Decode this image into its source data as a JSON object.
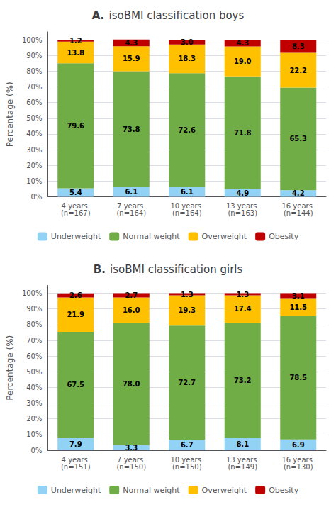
{
  "chart_data": [
    {
      "type": "bar",
      "title": "A. isoBMI classification boys",
      "categories": [
        "4 years (n=167)",
        "7 years (n=164)",
        "10 years (n=164)",
        "13 years (n=163)",
        "16 years (n=144)"
      ],
      "series": [
        {
          "name": "Underweight",
          "color": "#92D3F5",
          "values": [
            5.4,
            6.1,
            6.1,
            4.9,
            4.2
          ],
          "value_labels": [
            "5.4",
            "6.1",
            "6.1",
            "4.9",
            "4.2"
          ]
        },
        {
          "name": "Normal weight",
          "color": "#70AD47",
          "values": [
            79.6,
            73.8,
            72.6,
            71.8,
            65.3
          ],
          "value_labels": [
            "79.6",
            "73.8",
            "72.6",
            "71.8",
            "65.3"
          ]
        },
        {
          "name": "Overweight",
          "color": "#FFC000",
          "values": [
            13.8,
            15.9,
            18.3,
            19.0,
            22.2
          ],
          "value_labels": [
            "13.8",
            "15.9",
            "18.3",
            "19.0",
            "22.2"
          ]
        },
        {
          "name": "Obesity",
          "color": "#C00000",
          "values": [
            1.2,
            4.3,
            3.0,
            4.3,
            8.3
          ],
          "value_labels": [
            "1.2",
            "4.3",
            "3.0",
            "4.3",
            "8.3"
          ]
        }
      ],
      "ylabel": "Percentage (%)",
      "ylim": [
        0,
        105
      ],
      "yticks": [
        {
          "value": 0,
          "label": "0%"
        },
        {
          "value": 10,
          "label": "10%"
        },
        {
          "value": 20,
          "label": "20%"
        },
        {
          "value": 30,
          "label": "30%"
        },
        {
          "value": 40,
          "label": "40%"
        },
        {
          "value": 50,
          "label": "50%"
        },
        {
          "value": 60,
          "label": "60%"
        },
        {
          "value": 70,
          "label": "70%"
        },
        {
          "value": 80,
          "label": "80%"
        },
        {
          "value": 90,
          "label": "90%"
        },
        {
          "value": 100,
          "label": "100%"
        }
      ],
      "stacked": true,
      "data_labels": true,
      "grid": true,
      "legend": "bottom"
    },
    {
      "type": "bar",
      "title": "B. isoBMI classification girls",
      "categories": [
        "4 years (n=151)",
        "7 years (n=150)",
        "10 years (n=150)",
        "13 years (n=149)",
        "16 years (n=130)"
      ],
      "series": [
        {
          "name": "Underweight",
          "color": "#92D3F5",
          "values": [
            7.9,
            3.3,
            6.7,
            8.1,
            6.9
          ],
          "value_labels": [
            "7.9",
            "3.3",
            "6.7",
            "8.1",
            "6.9"
          ]
        },
        {
          "name": "Normal weight",
          "color": "#70AD47",
          "values": [
            67.5,
            78.0,
            72.7,
            73.2,
            78.5
          ],
          "value_labels": [
            "67.5",
            "78.0",
            "72.7",
            "73.2",
            "78.5"
          ]
        },
        {
          "name": "Overweight",
          "color": "#FFC000",
          "values": [
            21.9,
            16.0,
            19.3,
            17.4,
            11.5
          ],
          "value_labels": [
            "21.9",
            "16.0",
            "19.3",
            "17.4",
            "11.5"
          ]
        },
        {
          "name": "Obesity",
          "color": "#C00000",
          "values": [
            2.6,
            2.7,
            1.3,
            1.3,
            3.1
          ],
          "value_labels": [
            "2.6",
            "2.7",
            "1.3",
            "1.3",
            "3.1"
          ]
        }
      ],
      "ylabel": "Percentage (%)",
      "ylim": [
        0,
        105
      ],
      "yticks": [
        {
          "value": 0,
          "label": "0%"
        },
        {
          "value": 10,
          "label": "10%"
        },
        {
          "value": 20,
          "label": "20%"
        },
        {
          "value": 30,
          "label": "30%"
        },
        {
          "value": 40,
          "label": "40%"
        },
        {
          "value": 50,
          "label": "50%"
        },
        {
          "value": 60,
          "label": "60%"
        },
        {
          "value": 70,
          "label": "70%"
        },
        {
          "value": 80,
          "label": "80%"
        },
        {
          "value": 90,
          "label": "90%"
        },
        {
          "value": 100,
          "label": "100%"
        }
      ],
      "stacked": true,
      "data_labels": true,
      "grid": true,
      "legend": "bottom"
    }
  ]
}
